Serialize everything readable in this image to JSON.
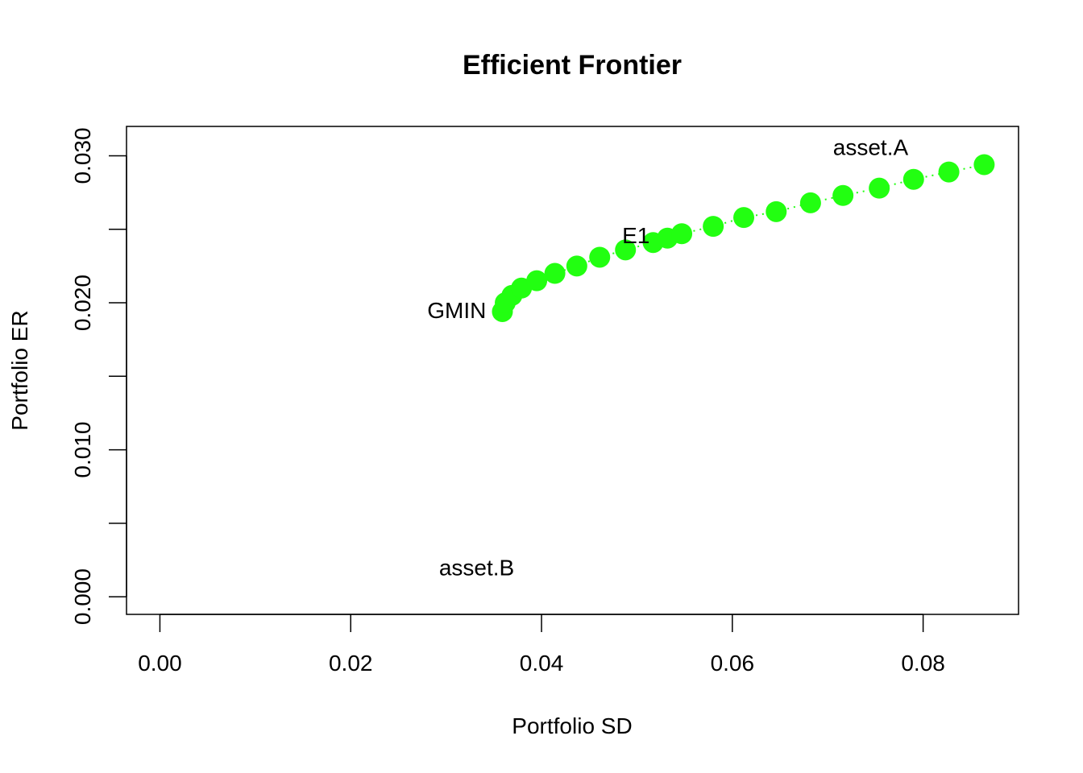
{
  "chart_data": {
    "type": "scatter",
    "title": "Efficient Frontier",
    "xlabel": "Portfolio SD",
    "ylabel": "Portfolio ER",
    "xlim": [
      -0.0035,
      0.09
    ],
    "ylim": [
      -0.0012,
      0.032
    ],
    "xticks": [
      "0.00",
      "0.02",
      "0.04",
      "0.06",
      "0.08"
    ],
    "xtick_values": [
      0,
      0.02,
      0.04,
      0.06,
      0.08
    ],
    "yticks": [
      "0.000",
      "",
      "0.010",
      "",
      "0.020",
      "",
      "0.030"
    ],
    "ytick_values": [
      0,
      0.005,
      0.01,
      0.015,
      0.02,
      0.025,
      0.03
    ],
    "grid": false,
    "point_color": "#22ff11",
    "line_style": "dotted",
    "series": [
      {
        "x": [
          0.0359,
          0.0362,
          0.0369,
          0.0379,
          0.0395,
          0.0414,
          0.0437,
          0.0461,
          0.0488,
          0.0517,
          0.0532,
          0.0547,
          0.058,
          0.0612,
          0.0646,
          0.0682,
          0.0716,
          0.0754,
          0.079,
          0.0827,
          0.0864
        ],
        "y": [
          0.0194,
          0.02,
          0.0205,
          0.021,
          0.0215,
          0.022,
          0.0225,
          0.0231,
          0.0236,
          0.0241,
          0.0244,
          0.0247,
          0.0252,
          0.0258,
          0.0262,
          0.0268,
          0.0273,
          0.0278,
          0.0284,
          0.0289,
          0.0294
        ]
      }
    ],
    "annotations": [
      {
        "text": "asset.A",
        "x": 0.0745,
        "y": 0.0306,
        "anchor": "middle"
      },
      {
        "text": "asset.B",
        "x": 0.0332,
        "y": 0.002,
        "anchor": "middle"
      },
      {
        "text": "GMIN",
        "x": 0.0342,
        "y": 0.0195,
        "anchor": "end"
      },
      {
        "text": "E1",
        "x": 0.0499,
        "y": 0.0246,
        "anchor": "middle"
      }
    ]
  }
}
